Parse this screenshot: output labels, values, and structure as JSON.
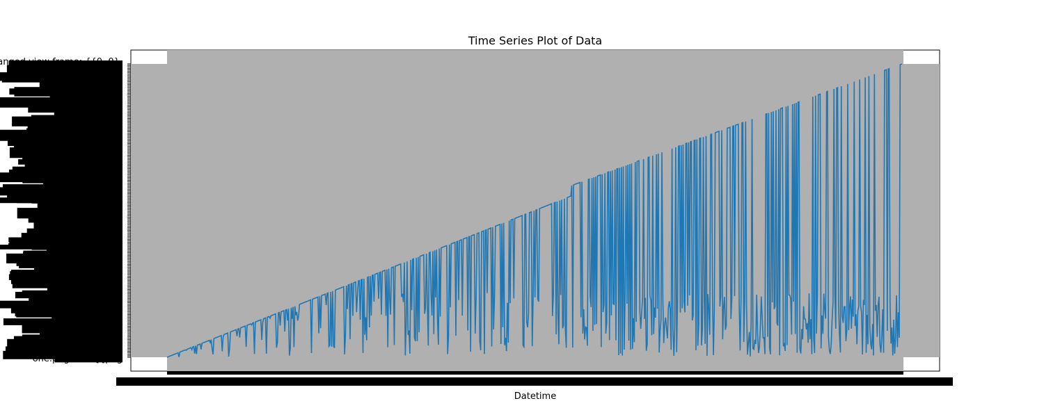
{
  "chart_data": {
    "type": "line",
    "title": "Time Series Plot of Data",
    "xlabel": "Datetime",
    "ylabel": "",
    "grid": false,
    "legend": "none",
    "series_color": "#1f77b4",
    "band_color": "#b0b0b0",
    "tick_label_color": "#000000",
    "y_tick_label_fragments": [
      "anged view frame: {{0, 0},",
      "one.png\" 184{{png"
    ],
    "y_tick_label_count": 200,
    "x_tick_label_count": 400,
    "x_index_range": [
      0,
      800
    ],
    "ylim": [
      0,
      1
    ],
    "series": [
      {
        "trend_start": 0.0,
        "trend_end": 1.0,
        "step_at": 0.55,
        "step_size": 0.035,
        "num_points": 800,
        "drop_min": 0.0
      }
    ]
  }
}
